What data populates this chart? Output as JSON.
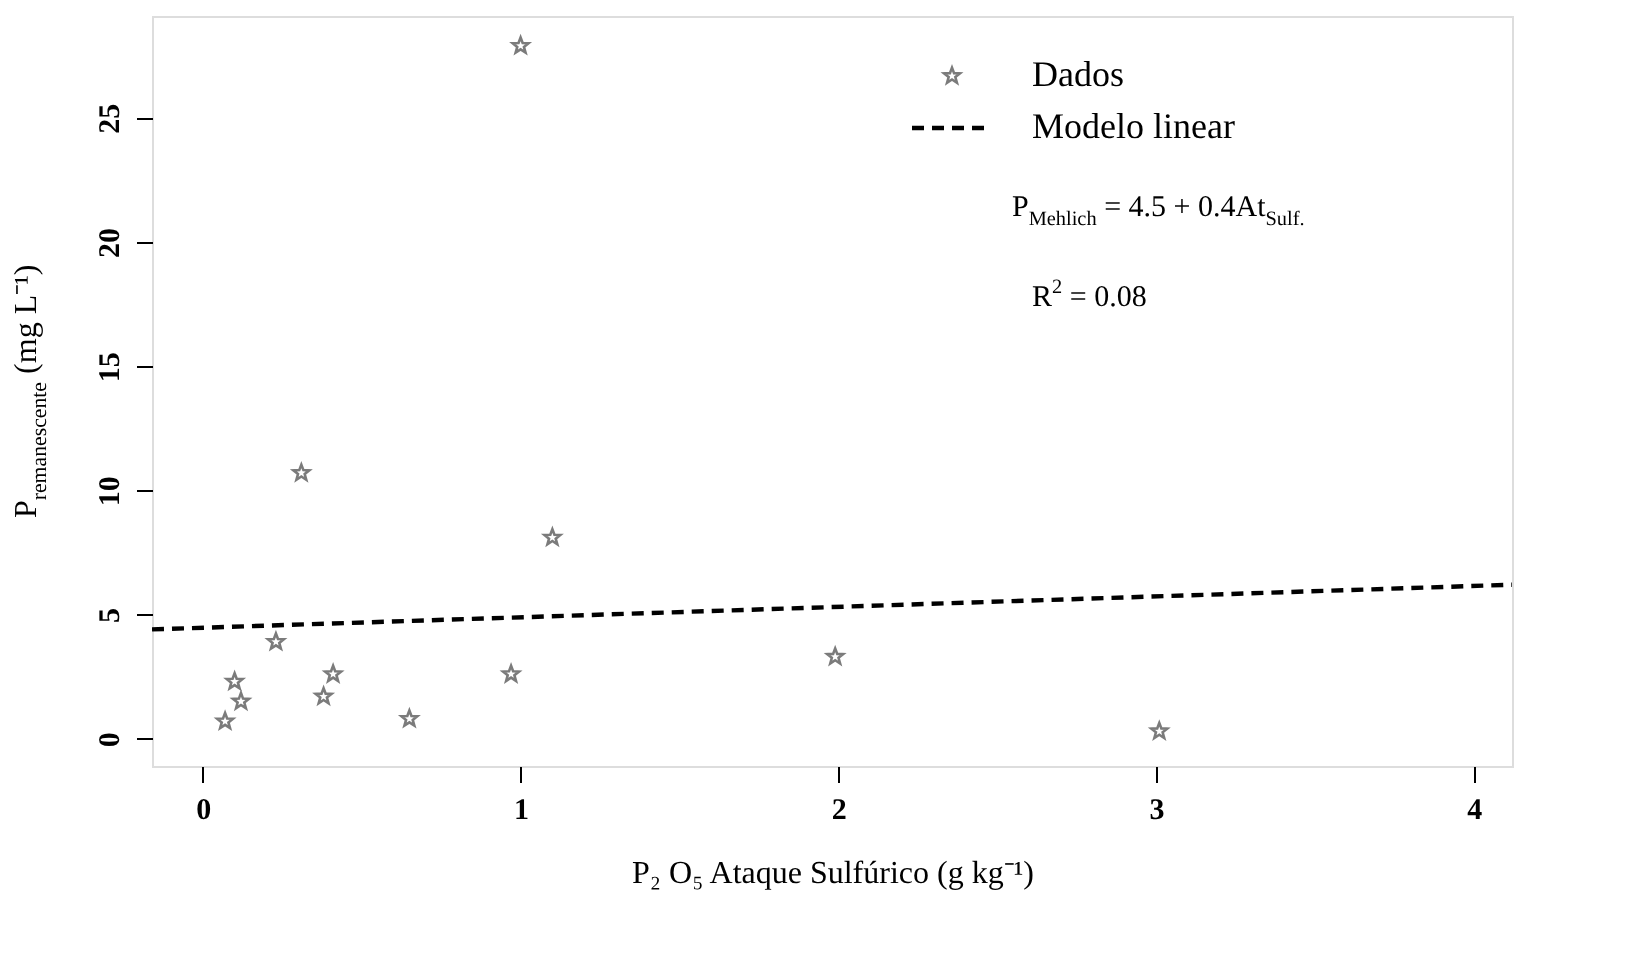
{
  "chart_data": {
    "type": "scatter",
    "xlabel": "P₂ O₅ Ataque Sulfúrico (g kg⁻¹)",
    "ylabel": "P$_{remanescente}$ (mg L⁻¹)",
    "xlim": [
      -0.16,
      4.12
    ],
    "ylim": [
      -1.1,
      29.1
    ],
    "xticks": [
      0,
      1,
      2,
      3,
      4
    ],
    "yticks": [
      0,
      5,
      10,
      15,
      20,
      25
    ],
    "grid": false,
    "legend": "top right",
    "series": [
      {
        "name": "Dados",
        "marker": "star",
        "color": "#444444",
        "x": [
          1.0,
          0.31,
          1.1,
          0.23,
          0.1,
          0.12,
          0.07,
          0.38,
          0.41,
          0.65,
          0.97,
          1.99,
          3.01
        ],
        "values": [
          27.9,
          10.7,
          8.1,
          3.9,
          2.3,
          1.5,
          0.7,
          1.7,
          2.6,
          0.8,
          2.6,
          3.3,
          0.3
        ]
      },
      {
        "name": "Modelo linear",
        "type": "line",
        "line_style": "dashed",
        "color": "#000000",
        "x": [
          -0.16,
          4.12
        ],
        "values": [
          4.4,
          6.2
        ]
      }
    ],
    "annotations": [
      "P$_{Mehlich}$ = 4.5 + 0.4At$_{Sulf.}$",
      "R$^{2}$ = 0.08"
    ]
  }
}
